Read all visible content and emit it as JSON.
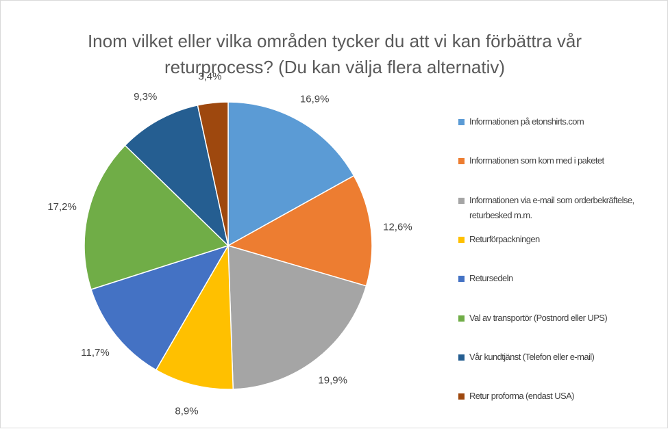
{
  "chart_data": {
    "type": "pie",
    "title": "Inom vilket eller vilka områden tycker du att vi kan förbättra vår returprocess? (Du kan välja flera alternativ)",
    "categories": [
      "Informationen på etonshirts.com",
      "Informationen som kom med i paketet",
      "Informationen via e-mail som orderbekräftelse, returbesked m.m.",
      "Returförpackningen",
      "Retursedeln",
      "Val av transportör (Postnord eller UPS)",
      "Vår kundtjänst (Telefon eller e-mail)",
      "Retur proforma (endast USA)"
    ],
    "values": [
      16.9,
      12.6,
      19.9,
      8.9,
      11.7,
      17.2,
      9.3,
      3.4
    ],
    "labels": [
      "16,9%",
      "12,6%",
      "19,9%",
      "8,9%",
      "11,7%",
      "17,2%",
      "9,3%",
      "3,4%"
    ],
    "colors": [
      "#5b9bd5",
      "#ed7d31",
      "#a5a5a5",
      "#ffc000",
      "#4472c4",
      "#70ad47",
      "#255e91",
      "#9e480e"
    ],
    "start_angle_deg": 0,
    "direction": "clockwise",
    "legend_position": "right"
  }
}
